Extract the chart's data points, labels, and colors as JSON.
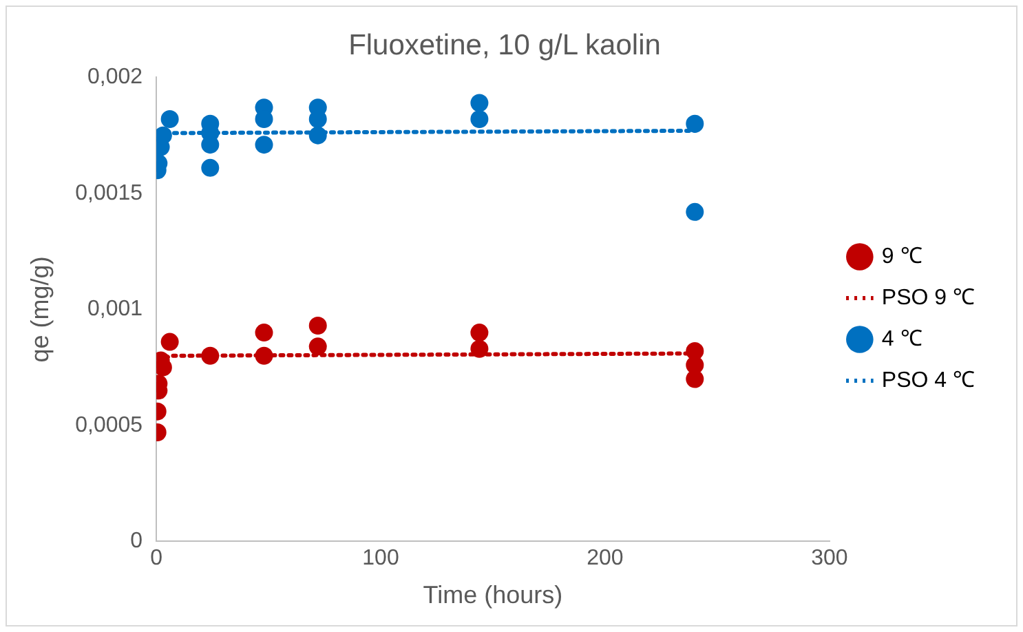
{
  "chart_data": {
    "type": "scatter",
    "title": "Fluoxetine, 10 g/L kaolin",
    "xlabel": "Time (hours)",
    "ylabel": "qe (mg/g)",
    "xlim": [
      0,
      300
    ],
    "xticks": [
      0,
      100,
      200,
      300
    ],
    "ylim": [
      0,
      0.002
    ],
    "yticks": [
      {
        "value": 0,
        "label": "0"
      },
      {
        "value": 0.0005,
        "label": "0,0005"
      },
      {
        "value": 0.001,
        "label": "0,001"
      },
      {
        "value": 0.0015,
        "label": "0,0015"
      },
      {
        "value": 0.002,
        "label": "0,002"
      }
    ],
    "grid": false,
    "legend": "right",
    "series": [
      {
        "name": "9 ℃",
        "type": "scatter",
        "marker": "circle",
        "color": "#c00000",
        "x": [
          0.5,
          0.5,
          1,
          1,
          2,
          3,
          6,
          24,
          48,
          48,
          72,
          72,
          144,
          144,
          240,
          240,
          240
        ],
        "values": [
          0.00047,
          0.00056,
          0.00065,
          0.00068,
          0.00078,
          0.00075,
          0.00086,
          0.0008,
          0.0009,
          0.0008,
          0.00093,
          0.00084,
          0.0009,
          0.00083,
          0.00082,
          0.00076,
          0.0007
        ]
      },
      {
        "name": "PSO 9 ℃",
        "type": "line",
        "marker": "none",
        "line_style": "dotted",
        "color": "#c00000",
        "x": [
          1,
          6,
          240
        ],
        "values": [
          0.00077,
          0.0008,
          0.00081
        ]
      },
      {
        "name": "4 ℃",
        "type": "scatter",
        "marker": "circle",
        "color": "#0070c0",
        "x": [
          0.5,
          1,
          2,
          3,
          6,
          24,
          24,
          24,
          24,
          48,
          48,
          48,
          72,
          72,
          72,
          144,
          144,
          240,
          240
        ],
        "values": [
          0.0016,
          0.00163,
          0.0017,
          0.00175,
          0.00182,
          0.0018,
          0.00176,
          0.00171,
          0.00161,
          0.00187,
          0.00182,
          0.00171,
          0.00187,
          0.00182,
          0.00175,
          0.00189,
          0.00182,
          0.0018,
          0.00142
        ]
      },
      {
        "name": "PSO 4 ℃",
        "type": "line",
        "marker": "none",
        "line_style": "dotted",
        "color": "#0070c0",
        "x": [
          1,
          6,
          240
        ],
        "values": [
          0.00174,
          0.00176,
          0.00177
        ]
      }
    ]
  }
}
